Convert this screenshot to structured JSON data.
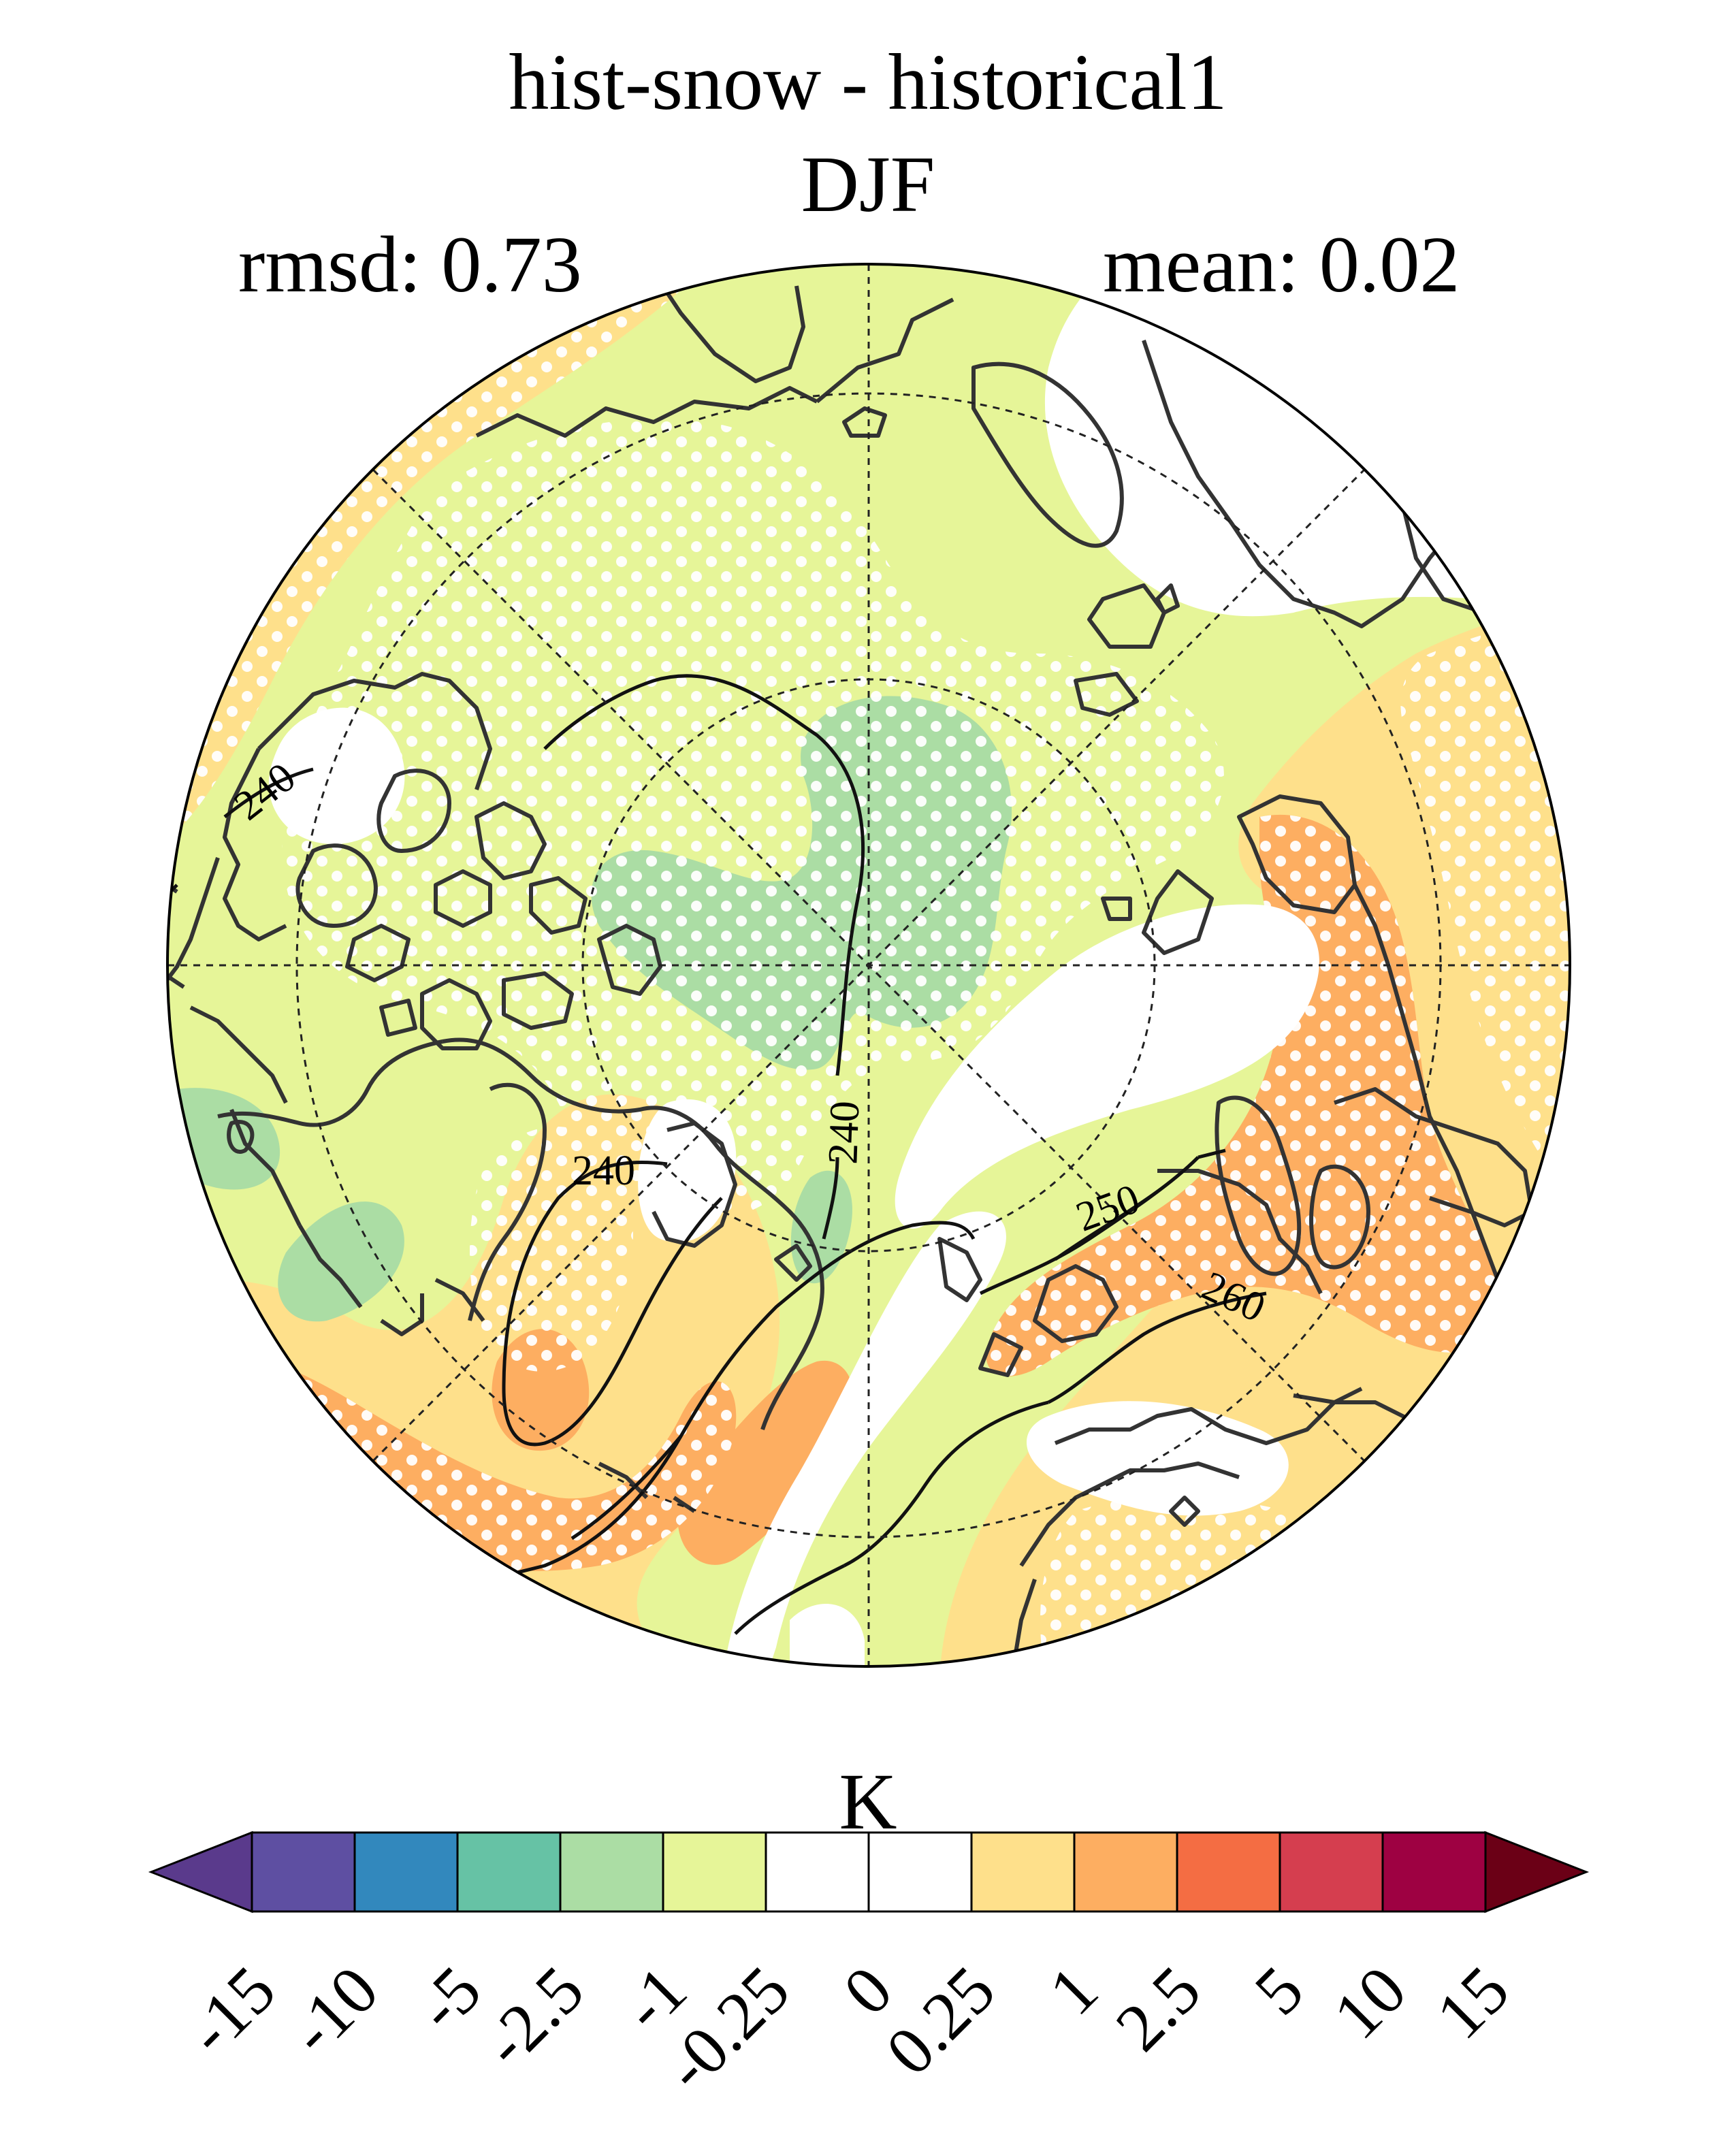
{
  "header": {
    "title": "hist-snow - historical1",
    "season": "DJF",
    "rmsd": "rmsd: 0.73",
    "mean": "mean: 0.02"
  },
  "map": {
    "projection": "north-polar-stereographic",
    "field": "near-surface air temperature difference",
    "contour_labels": [
      "240",
      "240",
      "240",
      "250",
      "260"
    ],
    "stippling": "white dots mark significant differences"
  },
  "colorbar": {
    "units": "K",
    "ticks": [
      "-15",
      "-10",
      "-5",
      "-2.5",
      "-1",
      "-0.25",
      "0",
      "0.25",
      "1",
      "2.5",
      "5",
      "10",
      "15"
    ],
    "colors": [
      "#5e4fa2",
      "#3288bd",
      "#66c2a5",
      "#abdda4",
      "#e6f598",
      "#ffffff",
      "#ffffff",
      "#fee08b",
      "#fdae61",
      "#f46d43",
      "#d53e4f",
      "#9e0142"
    ],
    "under_color": "#5a3a8c",
    "over_color": "#6b0016"
  }
}
